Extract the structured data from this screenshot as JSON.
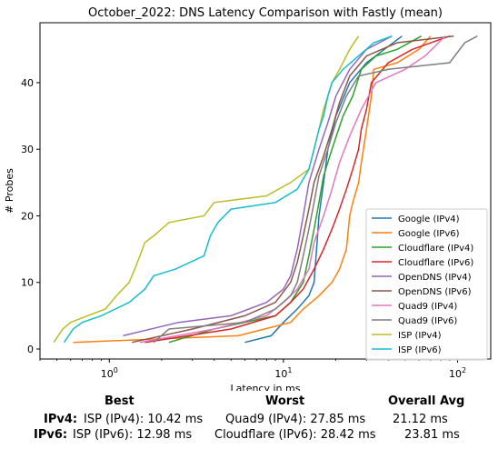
{
  "chart_data": {
    "type": "line",
    "title": "October_2022: DNS Latency Comparison with Fastly (mean)",
    "xlabel": "Latency in ms",
    "ylabel": "# Probes",
    "xscale": "log",
    "xlim": [
      0.4,
      155
    ],
    "ylim": [
      -1.5,
      49
    ],
    "xticks": [
      {
        "v": 1,
        "label": "10^0"
      },
      {
        "v": 10,
        "label": "10^1"
      },
      {
        "v": 100,
        "label": "10^2"
      }
    ],
    "yticks": [
      0,
      10,
      20,
      30,
      40
    ],
    "legend_placement": "lower-right",
    "grid": false,
    "series": [
      {
        "name": "Google (IPv4)",
        "color": "#1f77b4",
        "points": [
          [
            6,
            1
          ],
          [
            8.5,
            2
          ],
          [
            10,
            4
          ],
          [
            12,
            6
          ],
          [
            14,
            8
          ],
          [
            15,
            10
          ],
          [
            15.5,
            15
          ],
          [
            16,
            20
          ],
          [
            17,
            25
          ],
          [
            18,
            30
          ],
          [
            20,
            35
          ],
          [
            24,
            40
          ],
          [
            30,
            43
          ],
          [
            38,
            45
          ],
          [
            48,
            47
          ]
        ]
      },
      {
        "name": "Google (IPv6)",
        "color": "#ff7f0e",
        "points": [
          [
            0.62,
            1
          ],
          [
            5.5,
            2
          ],
          [
            11,
            4
          ],
          [
            13,
            6
          ],
          [
            16,
            8
          ],
          [
            19,
            10
          ],
          [
            21,
            12
          ],
          [
            23,
            15
          ],
          [
            24,
            20
          ],
          [
            25,
            22
          ],
          [
            27,
            25
          ],
          [
            28,
            28
          ],
          [
            30,
            33
          ],
          [
            32,
            38
          ],
          [
            33,
            42
          ],
          [
            45,
            43
          ],
          [
            60,
            45
          ],
          [
            70,
            47
          ]
        ]
      },
      {
        "name": "Cloudflare (IPv4)",
        "color": "#2ca02c",
        "points": [
          [
            2.2,
            1
          ],
          [
            4,
            3
          ],
          [
            9,
            5
          ],
          [
            11,
            7
          ],
          [
            13,
            10
          ],
          [
            14,
            14
          ],
          [
            15,
            18
          ],
          [
            16,
            22
          ],
          [
            17,
            26
          ],
          [
            19,
            30
          ],
          [
            22,
            35
          ],
          [
            25,
            38
          ],
          [
            28,
            42
          ],
          [
            34,
            44
          ],
          [
            45,
            45
          ],
          [
            62,
            47
          ]
        ]
      },
      {
        "name": "Cloudflare (IPv6)",
        "color": "#d62728",
        "points": [
          [
            1.6,
            1
          ],
          [
            5,
            3
          ],
          [
            9,
            5
          ],
          [
            11,
            7
          ],
          [
            13,
            9
          ],
          [
            15,
            12
          ],
          [
            17,
            15
          ],
          [
            19,
            18
          ],
          [
            21,
            21
          ],
          [
            23,
            24
          ],
          [
            25,
            27
          ],
          [
            27,
            30
          ],
          [
            28,
            33
          ],
          [
            30,
            36
          ],
          [
            32,
            40
          ],
          [
            40,
            43
          ],
          [
            55,
            45
          ],
          [
            90,
            47
          ]
        ]
      },
      {
        "name": "OpenDNS (IPv4)",
        "color": "#9467bd",
        "points": [
          [
            1.2,
            2
          ],
          [
            2.5,
            4
          ],
          [
            5,
            5
          ],
          [
            8,
            7
          ],
          [
            10,
            9
          ],
          [
            11,
            11
          ],
          [
            12,
            15
          ],
          [
            13,
            20
          ],
          [
            14,
            25
          ],
          [
            16,
            30
          ],
          [
            18,
            34
          ],
          [
            20,
            38
          ],
          [
            24,
            42
          ],
          [
            30,
            45
          ],
          [
            42,
            47
          ]
        ]
      },
      {
        "name": "OpenDNS (IPv6)",
        "color": "#8c564b",
        "points": [
          [
            1.35,
            1
          ],
          [
            3,
            3
          ],
          [
            6,
            5
          ],
          [
            9,
            7
          ],
          [
            11,
            10
          ],
          [
            12,
            13
          ],
          [
            13,
            17
          ],
          [
            14,
            21
          ],
          [
            15,
            25
          ],
          [
            17,
            29
          ],
          [
            19,
            33
          ],
          [
            21,
            37
          ],
          [
            24,
            41
          ],
          [
            30,
            44
          ],
          [
            45,
            46
          ],
          [
            95,
            47
          ]
        ]
      },
      {
        "name": "Quad9 (IPv4)",
        "color": "#e377c2",
        "points": [
          [
            1.5,
            1
          ],
          [
            4,
            3
          ],
          [
            8,
            5
          ],
          [
            10,
            7
          ],
          [
            12,
            9
          ],
          [
            14,
            12
          ],
          [
            15,
            16
          ],
          [
            17,
            20
          ],
          [
            19,
            24
          ],
          [
            21,
            28
          ],
          [
            24,
            32
          ],
          [
            28,
            36
          ],
          [
            34,
            40
          ],
          [
            50,
            42
          ],
          [
            65,
            44
          ],
          [
            85,
            47
          ]
        ]
      },
      {
        "name": "Quad9 (IPv6)",
        "color": "#7f7f7f",
        "points": [
          [
            1.8,
            1
          ],
          [
            2.2,
            3
          ],
          [
            6,
            4
          ],
          [
            9,
            6
          ],
          [
            11,
            8
          ],
          [
            12,
            10
          ],
          [
            13,
            14
          ],
          [
            14,
            18
          ],
          [
            15,
            22
          ],
          [
            16,
            26
          ],
          [
            18,
            30
          ],
          [
            20,
            34
          ],
          [
            23,
            38
          ],
          [
            27,
            41
          ],
          [
            40,
            42
          ],
          [
            90,
            43
          ],
          [
            110,
            46
          ],
          [
            130,
            47
          ]
        ]
      },
      {
        "name": "ISP (IPv4)",
        "color": "#bcbd22",
        "points": [
          [
            0.48,
            1
          ],
          [
            0.54,
            3
          ],
          [
            0.6,
            4
          ],
          [
            0.75,
            5
          ],
          [
            0.95,
            6
          ],
          [
            1.1,
            8
          ],
          [
            1.3,
            10
          ],
          [
            1.4,
            12
          ],
          [
            1.5,
            14
          ],
          [
            1.6,
            16
          ],
          [
            1.8,
            17
          ],
          [
            2.2,
            19
          ],
          [
            3.5,
            20
          ],
          [
            4,
            22
          ],
          [
            8,
            23
          ],
          [
            11,
            25
          ],
          [
            14,
            27
          ],
          [
            15,
            30
          ],
          [
            16,
            33
          ],
          [
            17,
            36
          ],
          [
            18,
            38
          ],
          [
            19,
            40
          ],
          [
            21,
            42
          ],
          [
            24,
            45
          ],
          [
            27,
            47
          ]
        ]
      },
      {
        "name": "ISP (IPv6)",
        "color": "#17becf",
        "points": [
          [
            0.55,
            1
          ],
          [
            0.62,
            3
          ],
          [
            0.7,
            4
          ],
          [
            0.9,
            5
          ],
          [
            1.3,
            7
          ],
          [
            1.6,
            9
          ],
          [
            1.8,
            11
          ],
          [
            2.4,
            12
          ],
          [
            3.5,
            14
          ],
          [
            3.8,
            17
          ],
          [
            4.2,
            19
          ],
          [
            5,
            21
          ],
          [
            9,
            22
          ],
          [
            12,
            24
          ],
          [
            14,
            27
          ],
          [
            15,
            30
          ],
          [
            16,
            33
          ],
          [
            17,
            35
          ],
          [
            18,
            38
          ],
          [
            19,
            40
          ],
          [
            22,
            42
          ],
          [
            27,
            44
          ],
          [
            33,
            46
          ],
          [
            42,
            47
          ]
        ]
      }
    ]
  },
  "summary": {
    "headers": {
      "best": "Best",
      "worst": "Worst",
      "avg": "Overall Avg"
    },
    "rows": [
      {
        "label": "IPv4:",
        "best": "ISP (IPv4): 10.42 ms",
        "worst": "Quad9 (IPv4): 27.85 ms",
        "avg": "21.12 ms"
      },
      {
        "label": "IPv6:",
        "best": "ISP (IPv6): 12.98 ms",
        "worst": "Cloudflare (IPv6): 28.42 ms",
        "avg": "23.81 ms"
      }
    ]
  }
}
